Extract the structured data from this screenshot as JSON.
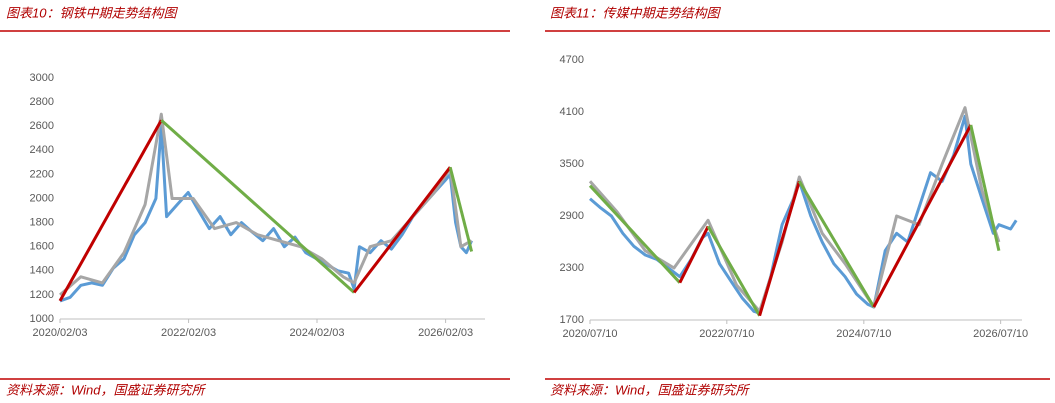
{
  "chart_data": [
    {
      "type": "line",
      "title": "图表10：钢铁中期走势结构图",
      "source": "资料来源：Wind，国盛证券研究所",
      "xlim": [
        "2020/02/03",
        "2026/09/15"
      ],
      "xticks": [
        "2020/02/03",
        "2022/02/03",
        "2024/02/03",
        "2026/02/03"
      ],
      "ylim": [
        1000,
        3000
      ],
      "yticks": [
        1000,
        1200,
        1400,
        1600,
        1800,
        2000,
        2200,
        2400,
        2600,
        2800,
        3000
      ],
      "series": [
        {
          "color": "#5b9bd5",
          "x": [
            "2020/02/03",
            "2020/04/01",
            "2020/06/01",
            "2020/08/01",
            "2020/10/01",
            "2020/12/01",
            "2021/02/01",
            "2021/04/01",
            "2021/06/01",
            "2021/08/01",
            "2021/09/01",
            "2021/10/01",
            "2021/12/01",
            "2022/02/01",
            "2022/04/01",
            "2022/06/01",
            "2022/08/01",
            "2022/10/01",
            "2022/12/01",
            "2023/02/01",
            "2023/04/01",
            "2023/06/01",
            "2023/08/01",
            "2023/10/01",
            "2023/12/01",
            "2024/02/01",
            "2024/04/01",
            "2024/06/01",
            "2024/08/01",
            "2024/09/01",
            "2024/10/01",
            "2024/12/01",
            "2025/02/01",
            "2025/04/01",
            "2025/06/01",
            "2025/08/01",
            "2025/10/01",
            "2025/12/01",
            "2026/02/01",
            "2026/03/01",
            "2026/04/01",
            "2026/05/01",
            "2026/06/01",
            "2026/07/01"
          ],
          "values": [
            1150,
            1180,
            1280,
            1300,
            1280,
            1420,
            1500,
            1700,
            1800,
            2000,
            2600,
            1850,
            1950,
            2050,
            1900,
            1750,
            1850,
            1700,
            1800,
            1720,
            1650,
            1750,
            1600,
            1680,
            1550,
            1500,
            1450,
            1400,
            1380,
            1250,
            1600,
            1550,
            1650,
            1580,
            1700,
            1850,
            1950,
            2050,
            2150,
            2200,
            1800,
            1600,
            1550,
            1650
          ]
        },
        {
          "color": "#a6a6a6",
          "x": [
            "2020/02/03",
            "2020/06/01",
            "2020/10/01",
            "2021/02/01",
            "2021/06/01",
            "2021/09/01",
            "2021/11/01",
            "2022/03/01",
            "2022/07/01",
            "2022/11/01",
            "2023/03/01",
            "2023/07/01",
            "2023/11/01",
            "2024/03/01",
            "2024/07/01",
            "2024/09/01",
            "2024/12/01",
            "2025/04/01",
            "2025/08/01",
            "2025/12/01",
            "2026/03/01",
            "2026/05/01",
            "2026/07/01"
          ],
          "values": [
            1200,
            1350,
            1300,
            1550,
            1950,
            2700,
            2000,
            2000,
            1750,
            1800,
            1700,
            1650,
            1600,
            1500,
            1350,
            1300,
            1600,
            1650,
            1850,
            2050,
            2250,
            1600,
            1650
          ]
        },
        {
          "color": "#c00000",
          "x": [
            "2020/02/03",
            "2021/09/01"
          ],
          "values": [
            1150,
            2650
          ]
        },
        {
          "color": "#70ad47",
          "x": [
            "2021/09/01",
            "2024/09/01"
          ],
          "values": [
            2650,
            1220
          ]
        },
        {
          "color": "#c00000",
          "x": [
            "2024/09/01",
            "2026/03/01"
          ],
          "values": [
            1220,
            2260
          ]
        },
        {
          "color": "#70ad47",
          "x": [
            "2026/03/01",
            "2026/07/01"
          ],
          "values": [
            2260,
            1560
          ]
        }
      ]
    },
    {
      "type": "line",
      "title": "图表11：传媒中期走势结构图",
      "source": "资料来源：Wind，国盛证券研究所",
      "xlim": [
        "2020/07/10",
        "2026/11/01"
      ],
      "xticks": [
        "2020/07/10",
        "2022/07/10",
        "2024/07/10",
        "2026/07/10"
      ],
      "ylim": [
        1700,
        4700
      ],
      "yticks": [
        1700,
        2300,
        2900,
        3500,
        4100,
        4700
      ],
      "series": [
        {
          "color": "#5b9bd5",
          "x": [
            "2020/07/10",
            "2020/09/01",
            "2020/11/01",
            "2021/01/01",
            "2021/03/01",
            "2021/05/01",
            "2021/07/01",
            "2021/09/01",
            "2021/11/01",
            "2022/01/01",
            "2022/03/01",
            "2022/04/01",
            "2022/06/01",
            "2022/08/01",
            "2022/10/01",
            "2022/12/01",
            "2023/01/01",
            "2023/03/01",
            "2023/05/01",
            "2023/07/01",
            "2023/08/01",
            "2023/10/01",
            "2023/12/01",
            "2024/02/01",
            "2024/04/01",
            "2024/06/01",
            "2024/08/01",
            "2024/09/01",
            "2024/11/01",
            "2025/01/01",
            "2025/03/01",
            "2025/05/01",
            "2025/07/01",
            "2025/09/01",
            "2025/11/01",
            "2026/01/01",
            "2026/02/01",
            "2026/04/01",
            "2026/06/01",
            "2026/07/01",
            "2026/09/01",
            "2026/10/01"
          ],
          "values": [
            3100,
            3000,
            2900,
            2700,
            2550,
            2450,
            2400,
            2300,
            2200,
            2400,
            2650,
            2700,
            2350,
            2150,
            1950,
            1800,
            1780,
            2200,
            2800,
            3100,
            3300,
            2900,
            2600,
            2350,
            2200,
            2000,
            1880,
            1850,
            2500,
            2700,
            2600,
            3000,
            3400,
            3300,
            3600,
            4050,
            3500,
            3100,
            2700,
            2800,
            2750,
            2850
          ]
        },
        {
          "color": "#a6a6a6",
          "x": [
            "2020/07/10",
            "2020/12/01",
            "2021/05/01",
            "2021/10/01",
            "2022/04/01",
            "2022/09/01",
            "2023/01/01",
            "2023/05/01",
            "2023/08/01",
            "2023/12/01",
            "2024/04/01",
            "2024/09/01",
            "2025/01/01",
            "2025/05/01",
            "2025/09/01",
            "2026/01/01",
            "2026/04/01",
            "2026/07/01"
          ],
          "values": [
            3300,
            2950,
            2500,
            2300,
            2850,
            2100,
            1800,
            2600,
            3350,
            2700,
            2350,
            1850,
            2900,
            2800,
            3500,
            4150,
            3200,
            2600
          ]
        },
        {
          "color": "#70ad47",
          "x": [
            "2020/07/10",
            "2021/11/01"
          ],
          "values": [
            3250,
            2130
          ]
        },
        {
          "color": "#c00000",
          "x": [
            "2021/11/01",
            "2022/04/01"
          ],
          "values": [
            2130,
            2780
          ]
        },
        {
          "color": "#70ad47",
          "x": [
            "2022/04/01",
            "2023/01/01"
          ],
          "values": [
            2780,
            1750
          ]
        },
        {
          "color": "#c00000",
          "x": [
            "2023/01/01",
            "2023/08/01"
          ],
          "values": [
            1750,
            3300
          ]
        },
        {
          "color": "#70ad47",
          "x": [
            "2023/08/01",
            "2024/09/01"
          ],
          "values": [
            3300,
            1850
          ]
        },
        {
          "color": "#c00000",
          "x": [
            "2024/09/01",
            "2026/02/01"
          ],
          "values": [
            1850,
            3950
          ]
        },
        {
          "color": "#70ad47",
          "x": [
            "2026/02/01",
            "2026/07/01"
          ],
          "values": [
            3950,
            2500
          ]
        }
      ]
    }
  ]
}
